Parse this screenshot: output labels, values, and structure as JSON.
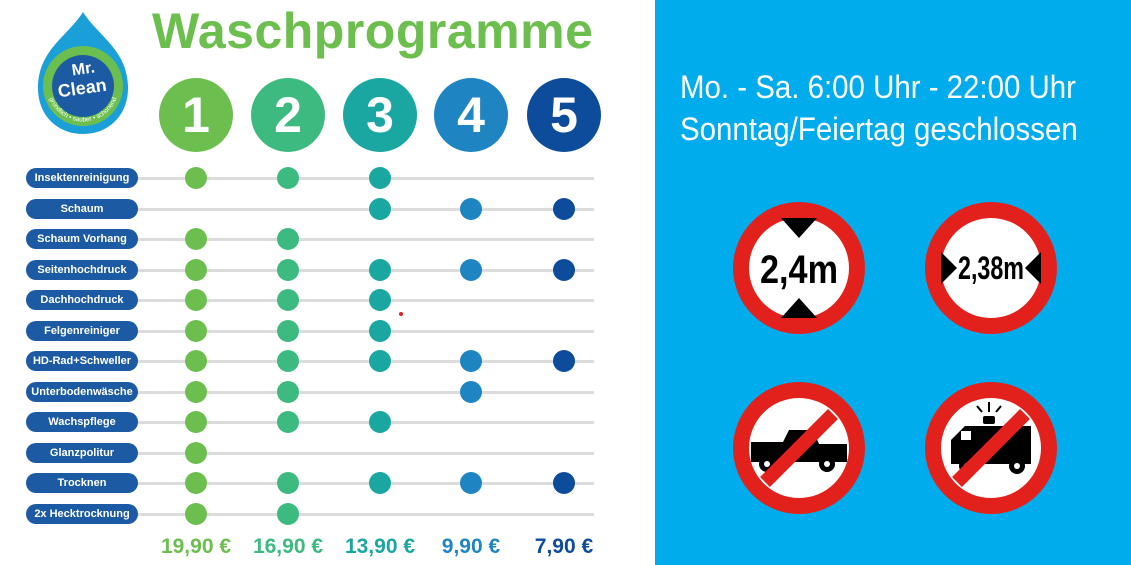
{
  "logo": {
    "line1": "Mr.",
    "line2": "Clean",
    "tagline": "gründlich • sauber • schonend"
  },
  "title": "Waschprogramme",
  "programs": [
    {
      "number": "1",
      "color": "#6cbf4e",
      "price": "19,90 €"
    },
    {
      "number": "2",
      "color": "#3dba80",
      "price": "16,90 €"
    },
    {
      "number": "3",
      "color": "#1aa7a2",
      "price": "13,90 €"
    },
    {
      "number": "4",
      "color": "#1f85c2",
      "price": "9,90 €"
    },
    {
      "number": "5",
      "color": "#0d4c9b",
      "price": "7,90 €"
    }
  ],
  "features": [
    {
      "label": "Insektenreinigung",
      "programs": [
        1,
        2,
        3
      ]
    },
    {
      "label": "Schaum",
      "programs": [
        3,
        4,
        5
      ]
    },
    {
      "label": "Schaum Vorhang",
      "programs": [
        1,
        2
      ]
    },
    {
      "label": "Seitenhochdruck",
      "programs": [
        1,
        2,
        3,
        4,
        5
      ]
    },
    {
      "label": "Dachhochdruck",
      "programs": [
        1,
        2,
        3
      ]
    },
    {
      "label": "Felgenreiniger",
      "programs": [
        1,
        2,
        3
      ]
    },
    {
      "label": "HD-Rad+Schweller",
      "programs": [
        1,
        2,
        3,
        4,
        5
      ]
    },
    {
      "label": "Unterbodenwäsche",
      "programs": [
        1,
        2,
        4
      ]
    },
    {
      "label": "Wachspflege",
      "programs": [
        1,
        2,
        3
      ]
    },
    {
      "label": "Glanzpolitur",
      "programs": [
        1
      ]
    },
    {
      "label": "Trocknen",
      "programs": [
        1,
        2,
        3,
        4,
        5
      ]
    },
    {
      "label": "2x Hecktrocknung",
      "programs": [
        1,
        2
      ]
    }
  ],
  "hours": {
    "weekdays": "Mo. - Sa.  6:00 Uhr - 22:00 Uhr",
    "sunday": "Sonntag/Feiertag geschlossen"
  },
  "signs": {
    "height_limit": "2,4m",
    "width_limit": "2,38m"
  },
  "colors": {
    "panel_blue": "#00acec",
    "label_blue": "#1c5aa3",
    "sign_red": "#e2211c"
  }
}
